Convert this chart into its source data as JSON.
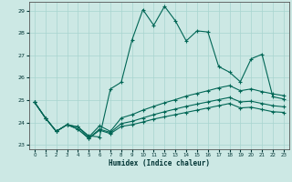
{
  "xlabel": "Humidex (Indice chaleur)",
  "bg_color": "#cce8e4",
  "grid_color": "#a8d4cf",
  "line_color": "#006655",
  "xlim": [
    -0.5,
    23.5
  ],
  "ylim": [
    22.8,
    29.4
  ],
  "yticks": [
    23,
    24,
    25,
    26,
    27,
    28,
    29
  ],
  "xticks": [
    0,
    1,
    2,
    3,
    4,
    5,
    6,
    7,
    8,
    9,
    10,
    11,
    12,
    13,
    14,
    15,
    16,
    17,
    18,
    19,
    20,
    21,
    22,
    23
  ],
  "line1_x": [
    0,
    1,
    2,
    3,
    4,
    5,
    6,
    7,
    8,
    9,
    10,
    11,
    12,
    13,
    14,
    15,
    16,
    17,
    18,
    19,
    20,
    21,
    22,
    23
  ],
  "line1_y": [
    24.9,
    24.2,
    23.6,
    23.9,
    23.8,
    23.4,
    23.35,
    25.5,
    25.8,
    27.7,
    29.05,
    28.35,
    29.2,
    28.55,
    27.65,
    28.1,
    28.05,
    26.5,
    26.25,
    25.82,
    26.85,
    27.05,
    25.15,
    25.05
  ],
  "line2_x": [
    0,
    1,
    2,
    3,
    4,
    5,
    6,
    7,
    8,
    9,
    10,
    11,
    12,
    13,
    14,
    15,
    16,
    17,
    18,
    19,
    20,
    21,
    22,
    23
  ],
  "line2_y": [
    24.9,
    24.2,
    23.6,
    23.9,
    23.8,
    23.35,
    23.85,
    23.6,
    24.2,
    24.35,
    24.55,
    24.72,
    24.88,
    25.02,
    25.18,
    25.3,
    25.42,
    25.55,
    25.65,
    25.42,
    25.5,
    25.38,
    25.28,
    25.2
  ],
  "line3_x": [
    0,
    1,
    2,
    3,
    4,
    5,
    6,
    7,
    8,
    9,
    10,
    11,
    12,
    13,
    14,
    15,
    16,
    17,
    18,
    19,
    20,
    21,
    22,
    23
  ],
  "line3_y": [
    24.9,
    24.2,
    23.6,
    23.9,
    23.7,
    23.3,
    23.7,
    23.55,
    23.95,
    24.05,
    24.2,
    24.35,
    24.48,
    24.6,
    24.72,
    24.82,
    24.92,
    25.02,
    25.12,
    24.92,
    24.95,
    24.85,
    24.75,
    24.7
  ],
  "line4_x": [
    0,
    1,
    2,
    3,
    4,
    5,
    6,
    7,
    8,
    9,
    10,
    11,
    12,
    13,
    14,
    15,
    16,
    17,
    18,
    19,
    20,
    21,
    22,
    23
  ],
  "line4_y": [
    24.9,
    24.2,
    23.6,
    23.9,
    23.7,
    23.28,
    23.65,
    23.5,
    23.82,
    23.9,
    24.02,
    24.15,
    24.25,
    24.35,
    24.45,
    24.55,
    24.65,
    24.75,
    24.85,
    24.65,
    24.68,
    24.58,
    24.48,
    24.45
  ]
}
